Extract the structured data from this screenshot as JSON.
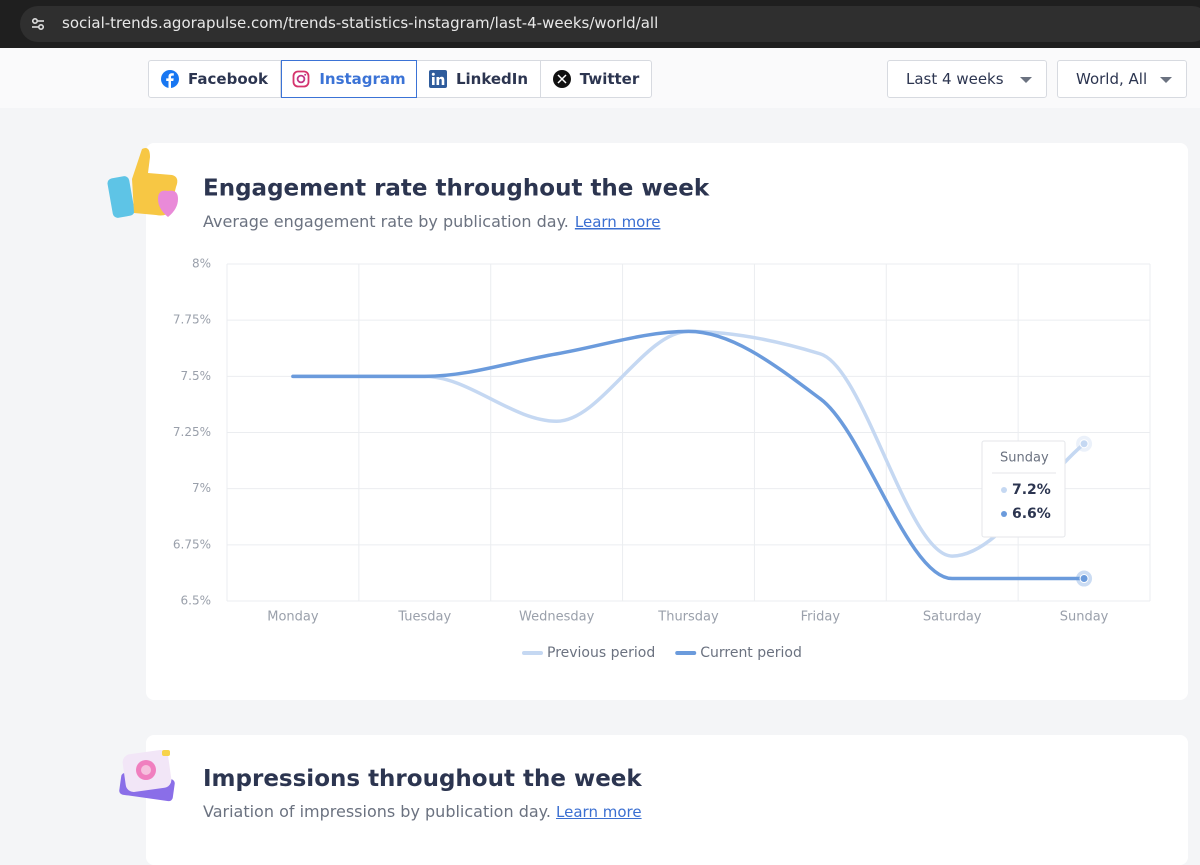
{
  "browser": {
    "url": "social-trends.agorapulse.com/trends-statistics-instagram/last-4-weeks/world/all"
  },
  "tabs": [
    "Facebook",
    "Instagram",
    "LinkedIn",
    "Twitter"
  ],
  "filters": [
    "Last 4 weeks",
    "World, All"
  ],
  "chart_data": {
    "type": "line",
    "title": "Engagement rate throughout the week",
    "subtitle": "Average engagement rate by publication day.",
    "link": "Learn more",
    "categories": [
      "Monday",
      "Tuesday",
      "Wednesday",
      "Thursday",
      "Friday",
      "Saturday",
      "Sunday"
    ],
    "series": [
      {
        "name": "Previous period",
        "color": "#c5d8f2",
        "values": [
          7.5,
          7.5,
          7.3,
          7.7,
          7.6,
          6.7,
          7.2
        ]
      },
      {
        "name": "Current period",
        "color": "#6b9bdc",
        "values": [
          7.5,
          7.5,
          7.6,
          7.7,
          7.4,
          6.6,
          6.6
        ]
      }
    ],
    "ylim": [
      6.5,
      8
    ],
    "yticks": [
      {
        "value": 6.5,
        "label": "6.5%"
      },
      {
        "value": 6.75,
        "label": "6.75%"
      },
      {
        "value": 7,
        "label": "7%"
      },
      {
        "value": 7.25,
        "label": "7.25%"
      },
      {
        "value": 7.5,
        "label": "7.5%"
      },
      {
        "value": 7.75,
        "label": "7.75%"
      },
      {
        "value": 8,
        "label": "8%"
      }
    ],
    "grid": true,
    "legend": "bottom",
    "tooltip": {
      "title": "Sunday",
      "items": [
        "7.2%",
        "6.6%"
      ]
    }
  },
  "section2": {
    "title": "Impressions throughout the week",
    "subtitle": "Variation of impressions by publication day.",
    "link": "Learn more"
  }
}
